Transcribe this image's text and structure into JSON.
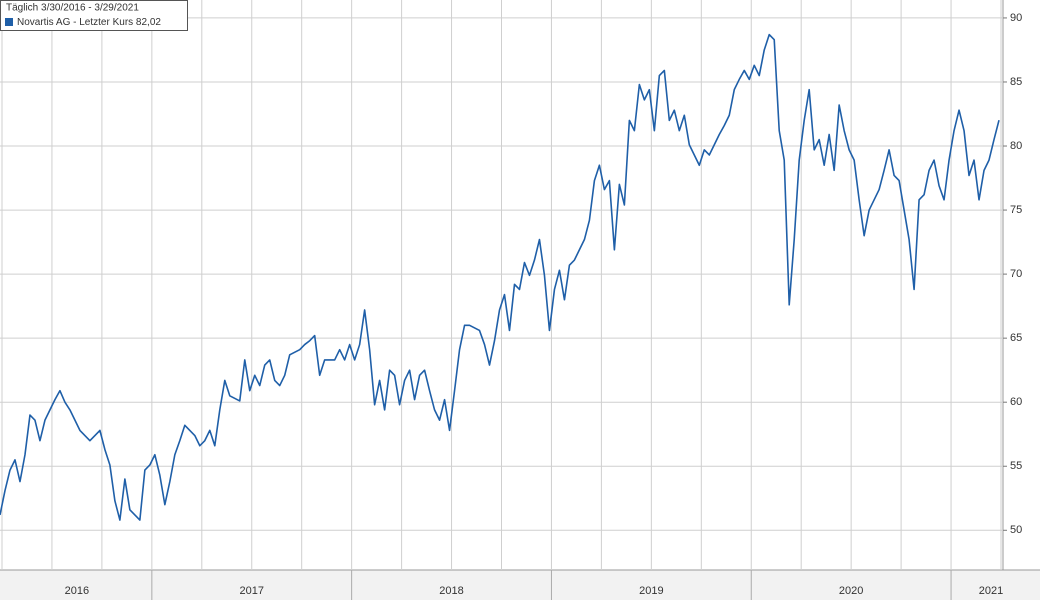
{
  "chart_data": {
    "type": "line",
    "legend_header": "Täglich 3/30/2016 - 3/29/2021",
    "x": [
      2016.24,
      2016.265,
      2016.29,
      2016.315,
      2016.34,
      2016.365,
      2016.39,
      2016.415,
      2016.44,
      2016.465,
      2016.49,
      2016.515,
      2016.54,
      2016.565,
      2016.59,
      2016.64,
      2016.69,
      2016.74,
      2016.765,
      2016.79,
      2016.815,
      2016.84,
      2016.865,
      2016.89,
      2016.915,
      2016.94,
      2016.965,
      2016.99,
      2017.015,
      2017.04,
      2017.065,
      2017.09,
      2017.115,
      2017.14,
      2017.165,
      2017.19,
      2017.215,
      2017.24,
      2017.265,
      2017.29,
      2017.315,
      2017.34,
      2017.365,
      2017.39,
      2017.44,
      2017.465,
      2017.49,
      2017.515,
      2017.54,
      2017.565,
      2017.59,
      2017.615,
      2017.64,
      2017.665,
      2017.69,
      2017.74,
      2017.765,
      2017.79,
      2017.815,
      2017.84,
      2017.865,
      2017.915,
      2017.94,
      2017.965,
      2017.99,
      2018.015,
      2018.04,
      2018.065,
      2018.09,
      2018.115,
      2018.14,
      2018.165,
      2018.19,
      2018.215,
      2018.24,
      2018.265,
      2018.29,
      2018.315,
      2018.34,
      2018.365,
      2018.39,
      2018.415,
      2018.44,
      2018.465,
      2018.49,
      2018.515,
      2018.54,
      2018.565,
      2018.59,
      2018.64,
      2018.665,
      2018.69,
      2018.715,
      2018.74,
      2018.765,
      2018.79,
      2018.815,
      2018.84,
      2018.865,
      2018.89,
      2018.915,
      2018.94,
      2018.965,
      2018.99,
      2019.015,
      2019.04,
      2019.065,
      2019.09,
      2019.115,
      2019.14,
      2019.165,
      2019.19,
      2019.215,
      2019.24,
      2019.265,
      2019.29,
      2019.315,
      2019.34,
      2019.365,
      2019.39,
      2019.415,
      2019.44,
      2019.465,
      2019.49,
      2019.515,
      2019.54,
      2019.565,
      2019.59,
      2019.615,
      2019.64,
      2019.665,
      2019.69,
      2019.74,
      2019.765,
      2019.79,
      2019.815,
      2019.84,
      2019.865,
      2019.89,
      2019.915,
      2019.94,
      2019.965,
      2019.99,
      2020.015,
      2020.04,
      2020.065,
      2020.09,
      2020.115,
      2020.14,
      2020.165,
      2020.19,
      2020.215,
      2020.24,
      2020.265,
      2020.29,
      2020.315,
      2020.34,
      2020.365,
      2020.39,
      2020.415,
      2020.44,
      2020.465,
      2020.49,
      2020.515,
      2020.54,
      2020.565,
      2020.59,
      2020.615,
      2020.64,
      2020.665,
      2020.69,
      2020.715,
      2020.74,
      2020.765,
      2020.79,
      2020.815,
      2020.84,
      2020.865,
      2020.89,
      2020.915,
      2020.94,
      2020.965,
      2020.99,
      2021.015,
      2021.04,
      2021.065,
      2021.09,
      2021.115,
      2021.14,
      2021.165,
      2021.19,
      2021.215,
      2021.24
    ],
    "series": [
      {
        "name": "Novartis AG - Letzter Kurs 82,02",
        "color": "#1f5fa8",
        "values": [
          51.2,
          53.1,
          54.7,
          55.5,
          53.8,
          55.9,
          59.0,
          58.6,
          57.0,
          58.6,
          59.4,
          60.2,
          60.9,
          60.0,
          59.4,
          57.8,
          57.0,
          57.8,
          56.3,
          55.1,
          52.3,
          50.8,
          54.0,
          51.6,
          51.2,
          50.8,
          54.7,
          55.1,
          55.9,
          54.3,
          52.0,
          53.8,
          55.9,
          57.0,
          58.2,
          57.8,
          57.4,
          56.6,
          57.0,
          57.8,
          56.6,
          59.4,
          61.7,
          60.5,
          60.1,
          63.3,
          60.9,
          62.1,
          61.3,
          62.9,
          63.3,
          61.7,
          61.3,
          62.1,
          63.7,
          64.1,
          64.5,
          64.8,
          65.2,
          62.1,
          63.3,
          63.3,
          64.1,
          63.3,
          64.5,
          63.3,
          64.5,
          67.2,
          64.1,
          59.8,
          61.7,
          59.4,
          62.5,
          62.1,
          59.8,
          61.7,
          62.5,
          60.2,
          62.1,
          62.5,
          60.9,
          59.4,
          58.6,
          60.2,
          57.8,
          60.9,
          64.1,
          66.0,
          66.0,
          65.6,
          64.5,
          62.9,
          64.8,
          67.2,
          68.4,
          65.6,
          69.2,
          68.8,
          70.9,
          69.9,
          71.1,
          72.7,
          69.9,
          65.6,
          68.8,
          70.3,
          68.0,
          70.7,
          71.1,
          71.9,
          72.7,
          74.2,
          77.3,
          78.5,
          76.6,
          77.3,
          71.9,
          77.0,
          75.4,
          82.0,
          81.2,
          84.8,
          83.6,
          84.4,
          81.2,
          85.5,
          85.9,
          82.0,
          82.8,
          81.2,
          82.4,
          80.1,
          78.5,
          79.7,
          79.3,
          80.1,
          80.9,
          81.6,
          82.4,
          84.4,
          85.2,
          85.9,
          85.2,
          86.3,
          85.5,
          87.5,
          88.7,
          88.3,
          81.2,
          78.9,
          67.6,
          72.7,
          78.9,
          82.0,
          84.4,
          79.7,
          80.5,
          78.5,
          80.9,
          78.1,
          83.2,
          81.2,
          79.7,
          78.9,
          75.8,
          73.0,
          75.0,
          75.8,
          76.6,
          78.1,
          79.7,
          77.7,
          77.3,
          75.0,
          72.7,
          68.8,
          75.8,
          76.2,
          78.1,
          78.9,
          76.9,
          75.8,
          78.9,
          81.2,
          82.8,
          81.2,
          77.7,
          78.9,
          75.8,
          78.1,
          78.9,
          80.5,
          82.02
        ]
      }
    ],
    "xlim": [
      2016.24,
      2021.26
    ],
    "xticks": [
      {
        "value": 2016.625,
        "label": "2016"
      },
      {
        "value": 2017.5,
        "label": "2017"
      },
      {
        "value": 2018.5,
        "label": "2018"
      },
      {
        "value": 2019.5,
        "label": "2019"
      },
      {
        "value": 2020.5,
        "label": "2020"
      },
      {
        "value": 2021.2,
        "label": "2021"
      }
    ],
    "xgrid": [
      2016.25,
      2016.5,
      2016.75,
      2017,
      2017.25,
      2017.5,
      2017.75,
      2018,
      2018.25,
      2018.5,
      2018.75,
      2019,
      2019.25,
      2019.5,
      2019.75,
      2020,
      2020.25,
      2020.5,
      2020.75,
      2021,
      2021.25
    ],
    "ylim": [
      46.9,
      91.4
    ],
    "yticks": [
      50,
      55,
      60,
      65,
      70,
      75,
      80,
      85,
      90
    ],
    "grid": true
  }
}
